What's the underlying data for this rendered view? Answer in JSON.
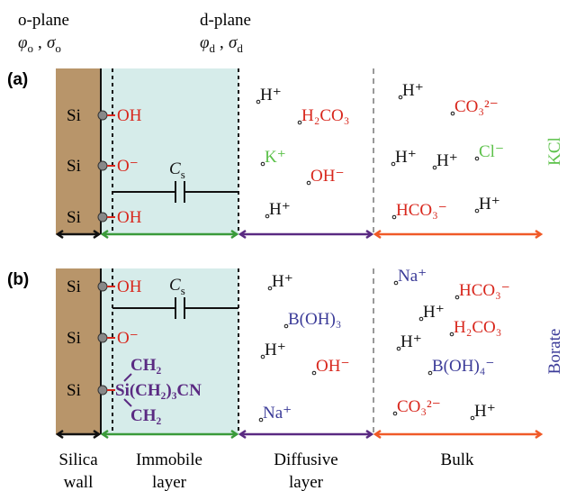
{
  "header": {
    "o_plane": "o-plane",
    "o_symbols": [
      {
        "base": "φ",
        "sub": "o"
      },
      {
        "base": "σ",
        "sub": "o"
      }
    ],
    "d_plane": "d-plane",
    "d_symbols": [
      {
        "base": "φ",
        "sub": "d"
      },
      {
        "base": "σ",
        "sub": "d"
      }
    ],
    "separator": ","
  },
  "panels": [
    {
      "label": "(a)",
      "electrolyte": "KCl",
      "electrolyte_color": "#5cc14a",
      "capacitance": {
        "base": "C",
        "sub": "s"
      },
      "surface": [
        {
          "si": "Si",
          "group": "OH"
        },
        {
          "si": "Si",
          "group": "O⁻"
        },
        {
          "si": "Si",
          "group": "OH"
        }
      ],
      "species": [
        {
          "label": "H⁺",
          "color": "#111111"
        },
        {
          "label": "H₂CO₃",
          "color": "#d8261c"
        },
        {
          "label": "K⁺",
          "color": "#5cc14a"
        },
        {
          "label": "OH⁻",
          "color": "#d8261c"
        },
        {
          "label": "H⁺",
          "color": "#111111"
        },
        {
          "label": "H⁺",
          "color": "#111111"
        },
        {
          "label": "CO₃²⁻",
          "color": "#d8261c"
        },
        {
          "label": "H⁺",
          "color": "#111111"
        },
        {
          "label": "H⁺",
          "color": "#111111"
        },
        {
          "label": "Cl⁻",
          "color": "#5cc14a"
        },
        {
          "label": "HCO₃⁻",
          "color": "#d8261c"
        },
        {
          "label": "H⁺",
          "color": "#111111"
        }
      ]
    },
    {
      "label": "(b)",
      "electrolyte": "Borate",
      "electrolyte_color": "#3b3b98",
      "capacitance": {
        "base": "C",
        "sub": "s"
      },
      "surface": [
        {
          "si": "Si",
          "group": "OH"
        },
        {
          "si": "Si",
          "group": "O⁻"
        },
        {
          "si": "Si",
          "group": "Si(CH₂)₃CN",
          "above": "CH₂",
          "below": "CH₂"
        }
      ],
      "species": [
        {
          "label": "H⁺",
          "color": "#111111"
        },
        {
          "label": "B(OH)₃",
          "color": "#3b3b98"
        },
        {
          "label": "H⁺",
          "color": "#111111"
        },
        {
          "label": "OH⁻",
          "color": "#d8261c"
        },
        {
          "label": "Na⁺",
          "color": "#3b3b98"
        },
        {
          "label": "Na⁺",
          "color": "#3b3b98"
        },
        {
          "label": "HCO₃⁻",
          "color": "#d8261c"
        },
        {
          "label": "H⁺",
          "color": "#111111"
        },
        {
          "label": "H₂CO₃",
          "color": "#d8261c"
        },
        {
          "label": "H⁺",
          "color": "#111111"
        },
        {
          "label": "B(OH)₄⁻",
          "color": "#3b3b98"
        },
        {
          "label": "CO₃²⁻",
          "color": "#d8261c"
        },
        {
          "label": "H⁺",
          "color": "#111111"
        }
      ]
    }
  ],
  "regions": [
    [
      "Silica",
      "wall"
    ],
    [
      "Immobile",
      "layer"
    ],
    [
      "Diffusive",
      "layer"
    ],
    [
      "Bulk"
    ]
  ]
}
